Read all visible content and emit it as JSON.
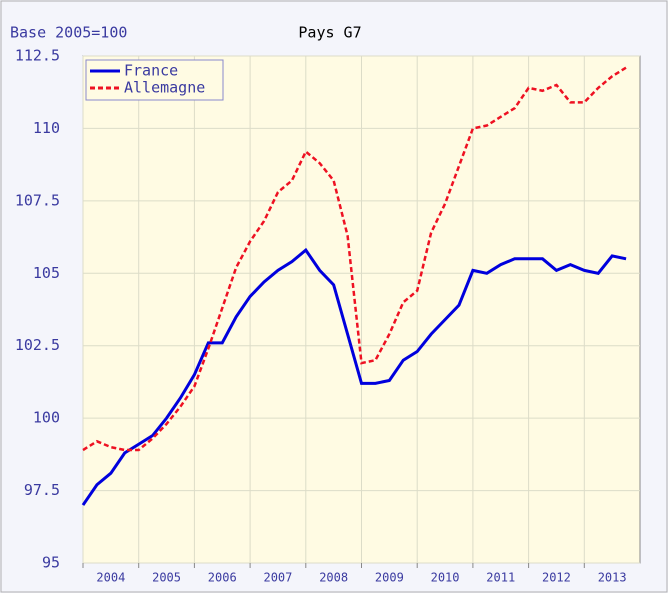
{
  "chart_data": {
    "type": "line",
    "title": "Pays G7",
    "subtitle": "Base 2005=100",
    "x": [
      2004,
      2004.25,
      2004.5,
      2004.75,
      2005,
      2005.25,
      2005.5,
      2005.75,
      2006,
      2006.25,
      2006.5,
      2006.75,
      2007,
      2007.25,
      2007.5,
      2007.75,
      2008,
      2008.25,
      2008.5,
      2008.75,
      2009,
      2009.25,
      2009.5,
      2009.75,
      2010,
      2010.25,
      2010.5,
      2010.75,
      2011,
      2011.25,
      2011.5,
      2011.75,
      2012,
      2012.25,
      2012.5,
      2012.75,
      2013,
      2013.25,
      2013.5,
      2013.75
    ],
    "series": [
      {
        "name": "France",
        "color": "#0000dd",
        "dashed": false,
        "values": [
          97.0,
          97.7,
          98.1,
          98.8,
          99.1,
          99.4,
          100.0,
          100.7,
          101.5,
          102.6,
          102.6,
          103.5,
          104.2,
          104.7,
          105.1,
          105.4,
          105.8,
          105.1,
          104.6,
          102.9,
          101.2,
          101.2,
          101.3,
          102.0,
          102.3,
          102.9,
          103.4,
          103.9,
          105.1,
          105.0,
          105.3,
          105.5,
          105.5,
          105.5,
          105.1,
          105.3,
          105.1,
          105.0,
          105.6,
          105.5
        ]
      },
      {
        "name": "Allemagne",
        "color": "#ee1122",
        "dashed": true,
        "values": [
          98.9,
          99.2,
          99.0,
          98.9,
          98.9,
          99.3,
          99.8,
          100.4,
          101.1,
          102.4,
          103.8,
          105.2,
          106.1,
          106.8,
          107.8,
          108.2,
          109.2,
          108.8,
          108.2,
          106.3,
          101.9,
          102.0,
          102.9,
          104.0,
          104.4,
          106.4,
          107.4,
          108.7,
          110.0,
          110.1,
          110.4,
          110.7,
          111.4,
          111.3,
          111.5,
          110.9,
          110.9,
          111.4,
          111.8,
          112.1
        ]
      }
    ],
    "xlim": [
      2004,
      2014
    ],
    "xticks": [
      2004,
      2005,
      2006,
      2007,
      2008,
      2009,
      2010,
      2011,
      2012,
      2013
    ],
    "ylim": [
      95,
      112.5
    ],
    "yticks": [
      95,
      97.5,
      100,
      102.5,
      105,
      107.5,
      110,
      112.5
    ],
    "grid": true
  }
}
